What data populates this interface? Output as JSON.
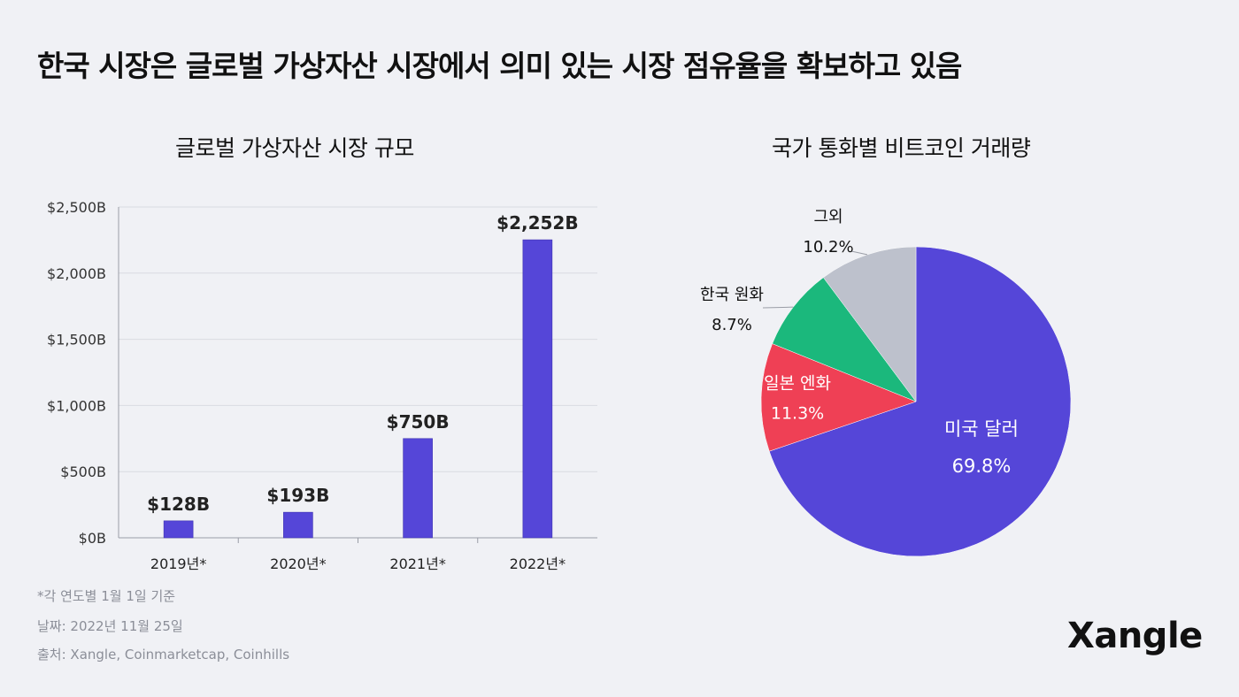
{
  "title": "한국 시장은 글로벌 가상자산 시장에서 의미 있는 시장 점유율을 확보하고 있음",
  "logo": "Xangle",
  "footnotes": {
    "note": "*각 연도별 1월 1일 기준",
    "date": "날짜: 2022년 11월 25일",
    "source": "출처: Xangle, Coinmarketcap, Coinhills"
  },
  "colors": {
    "bar": "#5546d8",
    "usd": "#5546d8",
    "jpy": "#ef4055",
    "krw": "#1bb87c",
    "other": "#bdc1cc",
    "grid": "#d9dbe1",
    "text": "#111111",
    "muted": "#8b8e98"
  },
  "chart_data": [
    {
      "type": "bar",
      "title": "글로벌 가상자산 시장 규모",
      "categories": [
        "2019년*",
        "2020년*",
        "2021년*",
        "2022년*"
      ],
      "values": [
        128,
        193,
        750,
        2252
      ],
      "value_labels": [
        "$128B",
        "$193B",
        "$750B",
        "$2,252B"
      ],
      "ylim": [
        0,
        2500
      ],
      "yticks": [
        0,
        500,
        1000,
        1500,
        2000,
        2500
      ],
      "ytick_labels": [
        "$0B",
        "$500B",
        "$1,000B",
        "$1,500B",
        "$2,000B",
        "$2,500B"
      ],
      "grid": true,
      "xlabel": "",
      "ylabel": ""
    },
    {
      "type": "pie",
      "title": "국가 통화별 비트코인 거래량",
      "slices": [
        {
          "name": "미국 달러",
          "value": 69.8,
          "label": "69.8%",
          "color": "#5546d8"
        },
        {
          "name": "일본 엔화",
          "value": 11.3,
          "label": "11.3%",
          "color": "#ef4055"
        },
        {
          "name": "한국 원화",
          "value": 8.7,
          "label": "8.7%",
          "color": "#1bb87c"
        },
        {
          "name": "그외",
          "value": 10.2,
          "label": "10.2%",
          "color": "#bdc1cc"
        }
      ]
    }
  ]
}
